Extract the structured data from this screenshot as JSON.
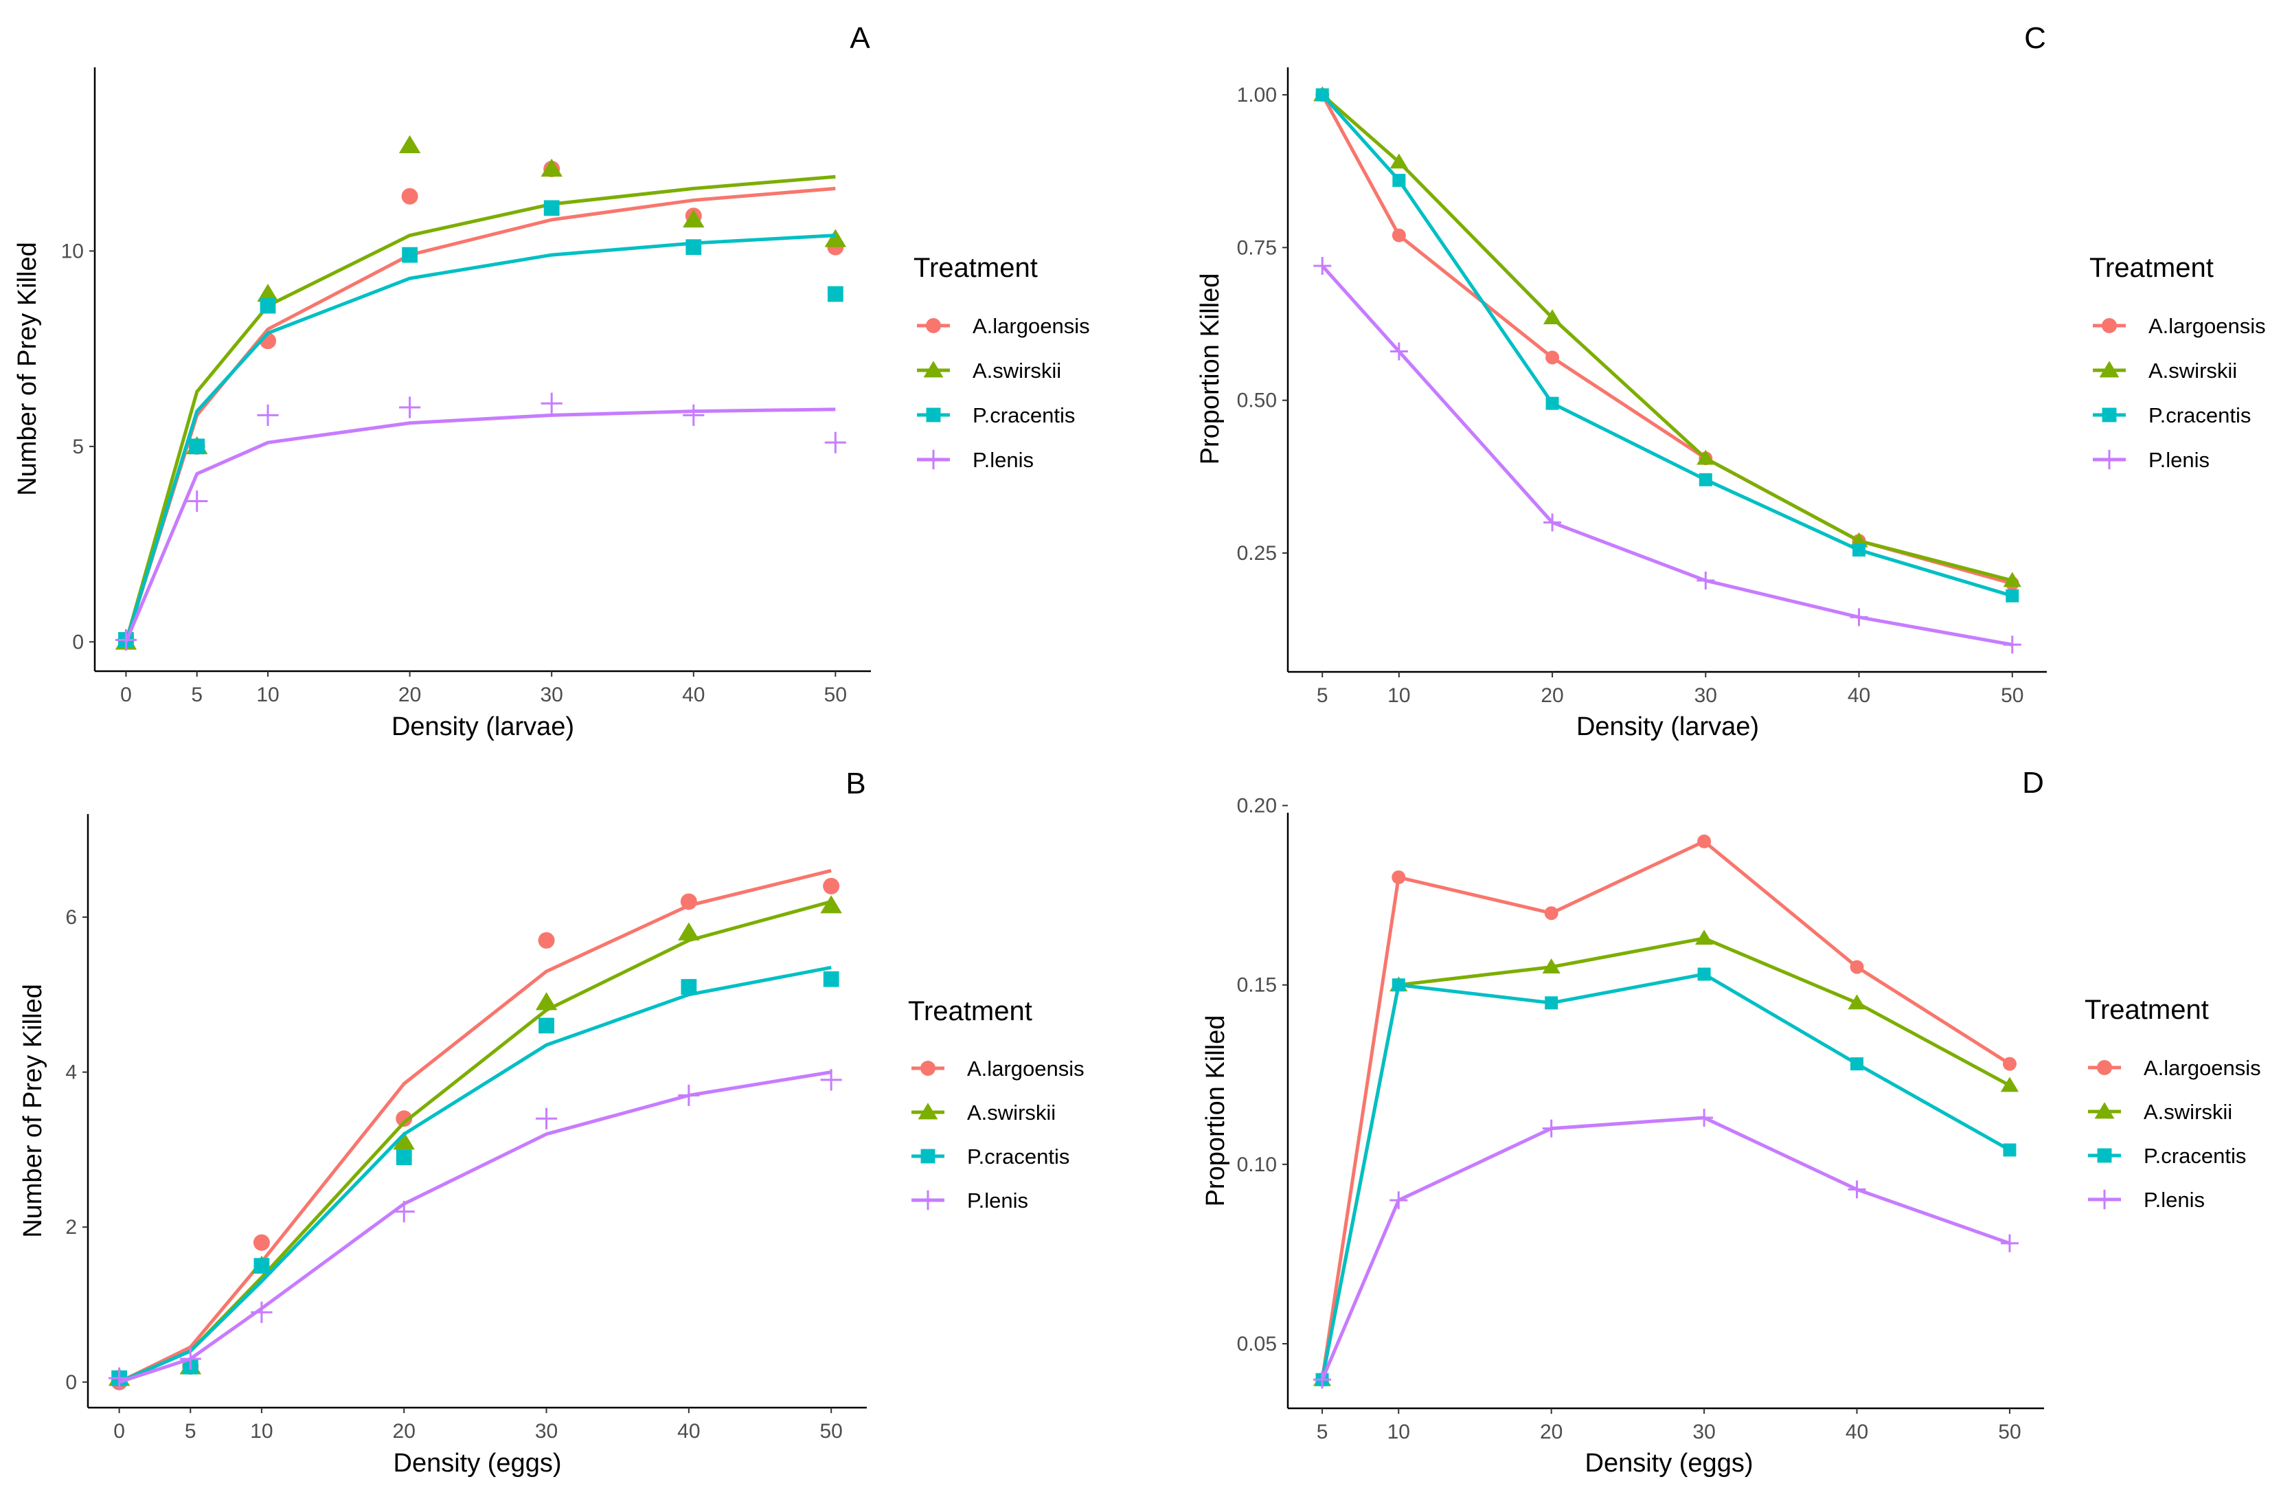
{
  "chart_data": [
    {
      "panel": "A",
      "type": "line",
      "title": "",
      "xlabel": "Density (larvae)",
      "ylabel": "Number of Prey Killed",
      "xticks": [
        0,
        5,
        10,
        20,
        30,
        40,
        50
      ],
      "yticks": [
        0,
        5,
        10
      ],
      "xlim": [
        -2.2,
        52.5
      ],
      "ylim": [
        -0.75,
        14.7
      ],
      "legend_title": "Treatment",
      "series": [
        {
          "name": "A.largoensis",
          "color": "#F8766D",
          "marker": "circle",
          "points": [
            [
              0,
              0.05
            ],
            [
              5,
              5
            ],
            [
              10,
              7.7
            ],
            [
              20,
              11.4
            ],
            [
              30,
              12.1
            ],
            [
              40,
              10.9
            ],
            [
              50,
              10.1
            ]
          ],
          "fit": [
            [
              0,
              0
            ],
            [
              5,
              5.8
            ],
            [
              10,
              8.0
            ],
            [
              20,
              9.9
            ],
            [
              30,
              10.8
            ],
            [
              40,
              11.3
            ],
            [
              50,
              11.6
            ]
          ]
        },
        {
          "name": "A.swirskii",
          "color": "#7CAE00",
          "marker": "triangle",
          "points": [
            [
              0,
              0
            ],
            [
              5,
              5.0
            ],
            [
              10,
              8.9
            ],
            [
              20,
              12.7
            ],
            [
              30,
              12.1
            ],
            [
              40,
              10.8
            ],
            [
              50,
              10.3
            ]
          ],
          "fit": [
            [
              0,
              0
            ],
            [
              5,
              6.4
            ],
            [
              10,
              8.6
            ],
            [
              20,
              10.4
            ],
            [
              30,
              11.2
            ],
            [
              40,
              11.6
            ],
            [
              50,
              11.9
            ]
          ]
        },
        {
          "name": "P.cracentis",
          "color": "#00BFC4",
          "marker": "square",
          "points": [
            [
              0,
              0.05
            ],
            [
              5,
              5.0
            ],
            [
              10,
              8.6
            ],
            [
              20,
              9.9
            ],
            [
              30,
              11.1
            ],
            [
              40,
              10.1
            ],
            [
              50,
              8.9
            ]
          ],
          "fit": [
            [
              0,
              0
            ],
            [
              5,
              5.9
            ],
            [
              10,
              7.9
            ],
            [
              20,
              9.3
            ],
            [
              30,
              9.9
            ],
            [
              40,
              10.2
            ],
            [
              50,
              10.4
            ]
          ]
        },
        {
          "name": "P.lenis",
          "color": "#C77CFF",
          "marker": "cross",
          "points": [
            [
              0,
              0.05
            ],
            [
              5,
              3.6
            ],
            [
              10,
              5.8
            ],
            [
              20,
              6.0
            ],
            [
              30,
              6.1
            ],
            [
              40,
              5.8
            ],
            [
              50,
              5.1
            ]
          ],
          "fit": [
            [
              0,
              0
            ],
            [
              5,
              4.3
            ],
            [
              10,
              5.1
            ],
            [
              20,
              5.6
            ],
            [
              30,
              5.8
            ],
            [
              40,
              5.9
            ],
            [
              50,
              5.95
            ]
          ]
        }
      ]
    },
    {
      "panel": "B",
      "type": "line",
      "title": "",
      "xlabel": "Density (eggs)",
      "ylabel": "Number of Prey Killed",
      "xticks": [
        0,
        5,
        10,
        20,
        30,
        40,
        50
      ],
      "yticks": [
        0,
        2,
        4,
        6
      ],
      "xlim": [
        -2.2,
        52.5
      ],
      "ylim": [
        -0.33,
        7.33
      ],
      "legend_title": "Treatment",
      "series": [
        {
          "name": "A.largoensis",
          "color": "#F8766D",
          "marker": "circle",
          "points": [
            [
              0,
              0
            ],
            [
              5,
              0.2
            ],
            [
              10,
              1.8
            ],
            [
              20,
              3.4
            ],
            [
              30,
              5.7
            ],
            [
              40,
              6.2
            ],
            [
              50,
              6.4
            ]
          ],
          "fit": [
            [
              0,
              0
            ],
            [
              5,
              0.45
            ],
            [
              10,
              1.55
            ],
            [
              20,
              3.85
            ],
            [
              30,
              5.3
            ],
            [
              40,
              6.15
            ],
            [
              50,
              6.6
            ]
          ]
        },
        {
          "name": "A.swirskii",
          "color": "#7CAE00",
          "marker": "triangle",
          "points": [
            [
              0,
              0.05
            ],
            [
              5,
              0.2
            ],
            [
              10,
              1.5
            ],
            [
              20,
              3.1
            ],
            [
              30,
              4.9
            ],
            [
              40,
              5.8
            ],
            [
              50,
              6.15
            ]
          ],
          "fit": [
            [
              0,
              0
            ],
            [
              5,
              0.4
            ],
            [
              10,
              1.35
            ],
            [
              20,
              3.35
            ],
            [
              30,
              4.8
            ],
            [
              40,
              5.7
            ],
            [
              50,
              6.2
            ]
          ]
        },
        {
          "name": "P.cracentis",
          "color": "#00BFC4",
          "marker": "square",
          "points": [
            [
              0,
              0.05
            ],
            [
              5,
              0.2
            ],
            [
              10,
              1.5
            ],
            [
              20,
              2.9
            ],
            [
              30,
              4.6
            ],
            [
              40,
              5.1
            ],
            [
              50,
              5.2
            ]
          ],
          "fit": [
            [
              0,
              0
            ],
            [
              5,
              0.4
            ],
            [
              10,
              1.3
            ],
            [
              20,
              3.2
            ],
            [
              30,
              4.35
            ],
            [
              40,
              5.0
            ],
            [
              50,
              5.35
            ]
          ]
        },
        {
          "name": "P.lenis",
          "color": "#C77CFF",
          "marker": "cross",
          "points": [
            [
              0,
              0.05
            ],
            [
              5,
              0.3
            ],
            [
              10,
              0.9
            ],
            [
              20,
              2.2
            ],
            [
              30,
              3.4
            ],
            [
              40,
              3.7
            ],
            [
              50,
              3.9
            ]
          ],
          "fit": [
            [
              0,
              0
            ],
            [
              5,
              0.3
            ],
            [
              10,
              0.95
            ],
            [
              20,
              2.3
            ],
            [
              30,
              3.2
            ],
            [
              40,
              3.7
            ],
            [
              50,
              4.0
            ]
          ]
        }
      ]
    },
    {
      "panel": "C",
      "type": "line",
      "title": "",
      "xlabel": "Density (larvae)",
      "ylabel": "Proportion Killed",
      "xticks": [
        5,
        10,
        20,
        30,
        40,
        50
      ],
      "ytick_labels": [
        "0.25",
        "0.50",
        "0.75",
        "1.00"
      ],
      "yticks": [
        0.25,
        0.5,
        0.75,
        1.0
      ],
      "xlim": [
        2.75,
        52.25
      ],
      "ylim": [
        0.0555,
        1.045
      ],
      "legend_title": "Treatment",
      "series": [
        {
          "name": "A.largoensis",
          "color": "#F8766D",
          "marker": "circle",
          "points": [
            [
              5,
              1.0
            ],
            [
              10,
              0.77
            ],
            [
              20,
              0.57
            ],
            [
              30,
              0.405
            ],
            [
              40,
              0.27
            ],
            [
              50,
              0.2
            ]
          ]
        },
        {
          "name": "A.swirskii",
          "color": "#7CAE00",
          "marker": "triangle",
          "points": [
            [
              5,
              1.0
            ],
            [
              10,
              0.89
            ],
            [
              20,
              0.635
            ],
            [
              30,
              0.405
            ],
            [
              40,
              0.27
            ],
            [
              50,
              0.205
            ]
          ]
        },
        {
          "name": "P.cracentis",
          "color": "#00BFC4",
          "marker": "square",
          "points": [
            [
              5,
              1.0
            ],
            [
              10,
              0.86
            ],
            [
              20,
              0.495
            ],
            [
              30,
              0.37
            ],
            [
              40,
              0.255
            ],
            [
              50,
              0.18
            ]
          ]
        },
        {
          "name": "P.lenis",
          "color": "#C77CFF",
          "marker": "cross",
          "points": [
            [
              5,
              0.72
            ],
            [
              10,
              0.58
            ],
            [
              20,
              0.3
            ],
            [
              30,
              0.205
            ],
            [
              40,
              0.145
            ],
            [
              50,
              0.1
            ]
          ]
        }
      ]
    },
    {
      "panel": "D",
      "type": "line",
      "title": "",
      "xlabel": "Density (eggs)",
      "ylabel": "Proportion Killed",
      "xticks": [
        5,
        10,
        20,
        30,
        40,
        50
      ],
      "ytick_labels": [
        "0.05",
        "0.10",
        "0.15",
        "0.20"
      ],
      "yticks": [
        0.05,
        0.1,
        0.15,
        0.2
      ],
      "xlim": [
        2.75,
        52.25
      ],
      "ylim": [
        0.032,
        0.198
      ],
      "legend_title": "Treatment",
      "series": [
        {
          "name": "A.largoensis",
          "color": "#F8766D",
          "marker": "circle",
          "points": [
            [
              5,
              0.04
            ],
            [
              10,
              0.18
            ],
            [
              20,
              0.17
            ],
            [
              30,
              0.19
            ],
            [
              40,
              0.155
            ],
            [
              50,
              0.128
            ]
          ]
        },
        {
          "name": "A.swirskii",
          "color": "#7CAE00",
          "marker": "triangle",
          "points": [
            [
              5,
              0.04
            ],
            [
              10,
              0.15
            ],
            [
              20,
              0.155
            ],
            [
              30,
              0.163
            ],
            [
              40,
              0.145
            ],
            [
              50,
              0.122
            ]
          ]
        },
        {
          "name": "P.cracentis",
          "color": "#00BFC4",
          "marker": "square",
          "points": [
            [
              5,
              0.04
            ],
            [
              10,
              0.15
            ],
            [
              20,
              0.145
            ],
            [
              30,
              0.153
            ],
            [
              40,
              0.128
            ],
            [
              50,
              0.104
            ]
          ]
        },
        {
          "name": "P.lenis",
          "color": "#C77CFF",
          "marker": "cross",
          "points": [
            [
              5,
              0.04
            ],
            [
              10,
              0.09
            ],
            [
              20,
              0.11
            ],
            [
              30,
              0.113
            ],
            [
              40,
              0.093
            ],
            [
              50,
              0.078
            ]
          ]
        }
      ]
    }
  ]
}
